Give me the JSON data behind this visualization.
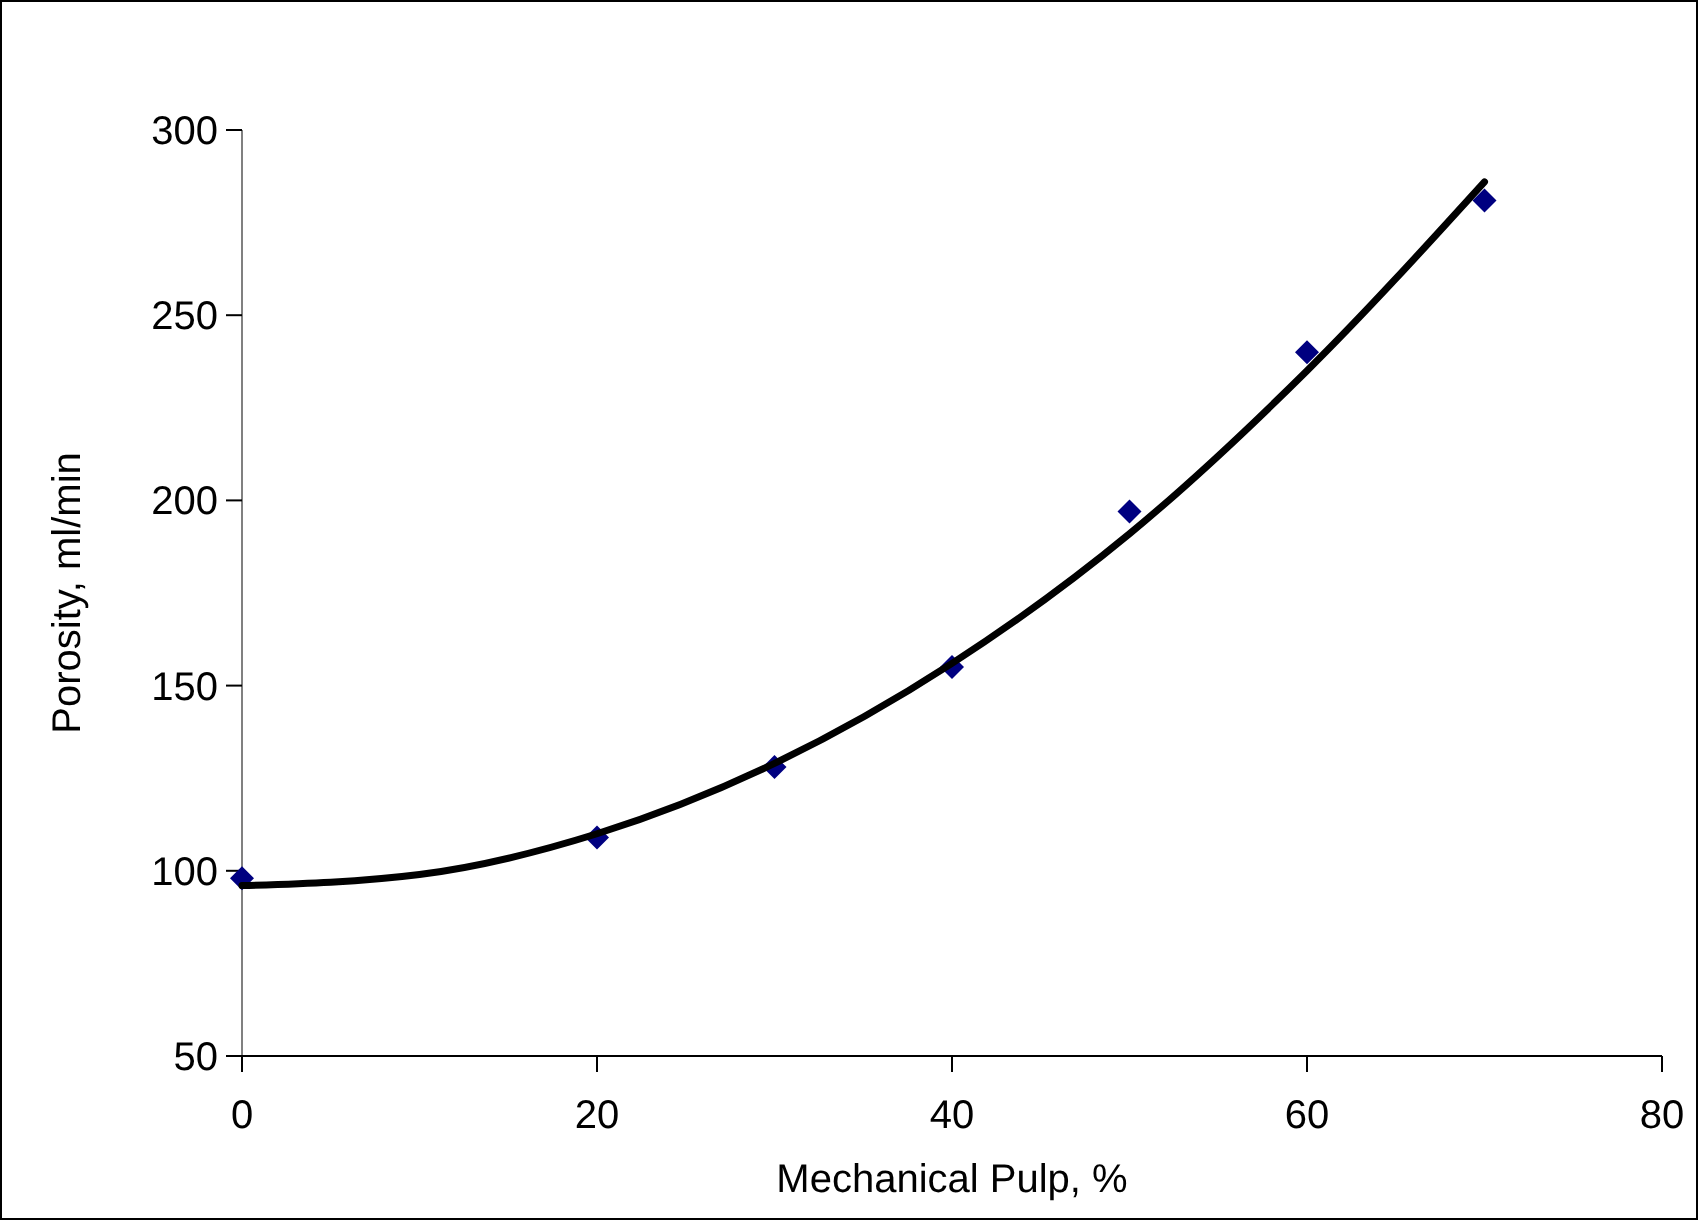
{
  "chart_data": {
    "type": "scatter",
    "xlabel": "Mechanical Pulp, %",
    "ylabel": "Porosity, ml/min",
    "xlim": [
      0,
      80
    ],
    "xticks": [
      0,
      20,
      40,
      60,
      80
    ],
    "ylim": [
      50,
      300
    ],
    "yticks": [
      50,
      100,
      150,
      200,
      250,
      300
    ],
    "grid": false,
    "marker": "diamond",
    "series": [
      {
        "color": "#000080",
        "x": [
          0,
          20,
          30,
          40,
          50,
          60,
          70
        ],
        "values": [
          98,
          109,
          128,
          155,
          197,
          240,
          281
        ]
      },
      {
        "type": "line",
        "color": "#000000",
        "line_style": "solid",
        "marker": "none",
        "x": [
          0,
          10,
          20,
          30,
          40,
          50,
          60,
          70
        ],
        "values": [
          96,
          99,
          110,
          129,
          156,
          191,
          235,
          286
        ]
      }
    ]
  }
}
